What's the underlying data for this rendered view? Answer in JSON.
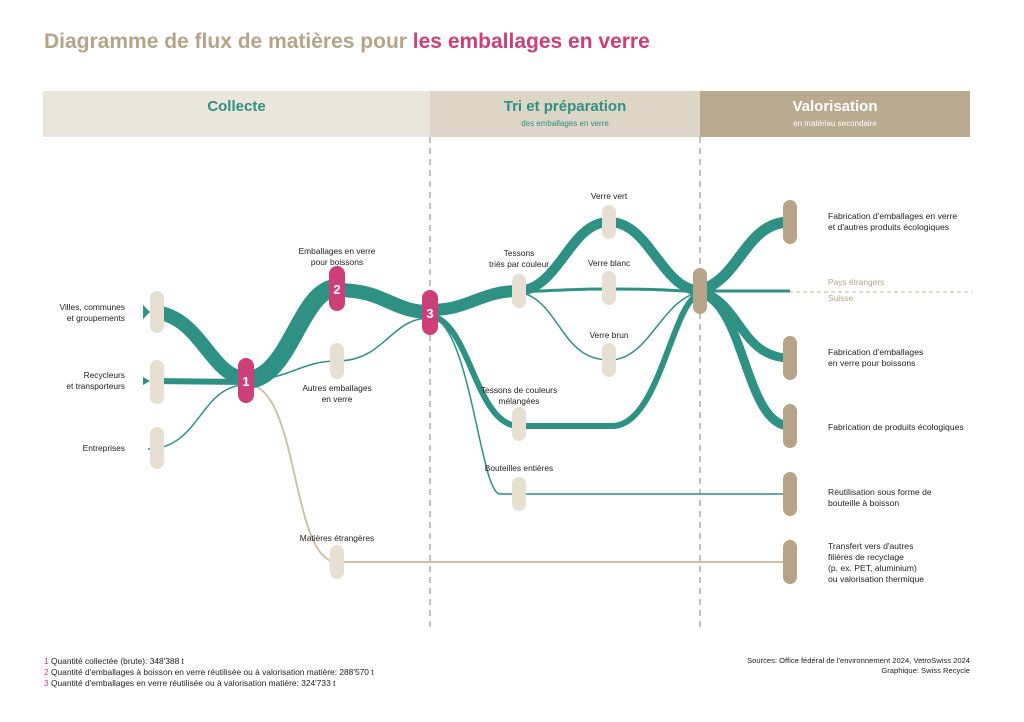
{
  "title": {
    "prefix": "Diagramme de flux de matières pour",
    "accent": "les emballages en verre"
  },
  "stages": [
    {
      "label": "Collecte",
      "sub": ""
    },
    {
      "label": "Tri et préparation",
      "sub": "des emballages en verre"
    },
    {
      "label": "Valorisation",
      "sub": "en matériau secondaire"
    }
  ],
  "sources": {
    "villes": "Villes, communes\net groupements",
    "recycleurs": "Recycleurs\net transporteurs",
    "entreprises": "Entreprises"
  },
  "nodes": {
    "n1": "1",
    "n2": "2",
    "n3": "3",
    "emballages_boissons": "Emballages en verre\npour boissons",
    "autres_emballages": "Autres emballages\nen verre",
    "matieres_etrangeres": "Matières étrangères",
    "tessons_tries": "Tessons\ntriés par couleur",
    "verre_vert": "Verre vert",
    "verre_blanc": "Verre blanc",
    "verre_brun": "Verre brun",
    "tessons_melanges": "Tessons de couleurs\nmélangées",
    "bouteilles_entieres": "Bouteilles entières"
  },
  "zones": {
    "foreign": "Pays étrangers",
    "swiss": "Suisse"
  },
  "destinations": {
    "fab_emballages": "Fabrication d'emballages en verre\net d'autres produits écologiques",
    "fab_boissons": "Fabrication d'emballages\nen verre pour boissons",
    "fab_produits": "Fabrication de produits écologiques",
    "reutilisation": "Réutilisation sous forme de\nbouteille à boisson",
    "transfert": "Transfert vers d'autres\nfilières de recyclage\n(p. ex. PET, aluminium)\nou valorisation thermique"
  },
  "legend": [
    {
      "num": "1",
      "text": "Quantité collectée (brute): 348'388 t"
    },
    {
      "num": "2",
      "text": "Quantité d'emballages à boisson en verre réutilisée ou à valorisation matière: 288'570 t"
    },
    {
      "num": "3",
      "text": "Quantité d'emballages en verre réutilisée ou à valorisation matière: 324'733 t"
    }
  ],
  "source_note": {
    "line1": "Sources: Office fédéral de l'environnement 2024, VetroSwiss 2024",
    "line2": "Graphique: Swiss Recycle"
  },
  "colors": {
    "teal": "#2e9183",
    "magenta": "#cc3f78",
    "beige": "#e6dfd2",
    "tan": "#b5a488",
    "node": "#e6dfd2",
    "dest_node": "#b5a488"
  }
}
